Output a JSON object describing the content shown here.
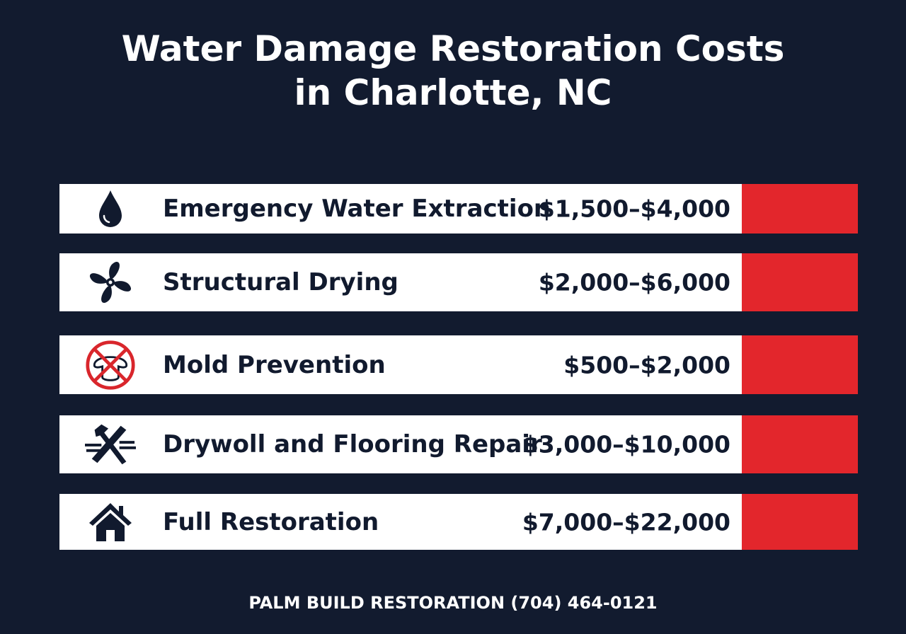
{
  "title": {
    "line1": "Water Damage Restoration Costs",
    "line2": "in Charlotte, NC"
  },
  "accent_color": "#e3262c",
  "rows": [
    {
      "icon": "water-drop-icon",
      "label": "Emergency Water Extraction",
      "price": "$1,500–$4,000"
    },
    {
      "icon": "fan-icon",
      "label": "Structural Drying",
      "price": "$2,000–$6,000"
    },
    {
      "icon": "no-mold-icon",
      "label": "Mold Prevention",
      "price": "$500–$2,000"
    },
    {
      "icon": "hammer-tools-icon",
      "label": "Drywoll and Flooring Repair",
      "price": "$3,000–$10,000"
    },
    {
      "icon": "house-icon",
      "label": "Full Restoration",
      "price": "$7,000–$22,000"
    }
  ],
  "footer": "PALM BUILD RESTORATION (704) 464-0121"
}
